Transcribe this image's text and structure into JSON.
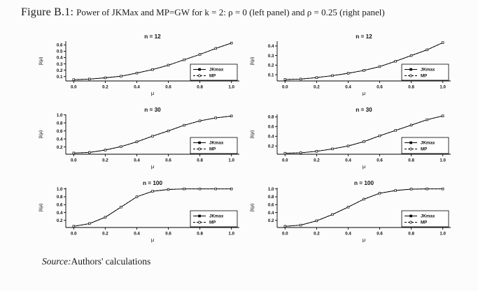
{
  "figure": {
    "label": "Figure B.1:",
    "caption": "Power of JKMax and MP=GW for k = 2: ρ = 0 (left panel) and ρ = 0.25 (right panel)"
  },
  "source": {
    "label": "Source:",
    "text": "Authors' calculations"
  },
  "colors": {
    "line": "#000000",
    "background": "#fcfcfc",
    "text": "#1a1a1a"
  },
  "chart_data": [
    {
      "type": "line",
      "title": "n = 12",
      "panel": "rho = 0 (left panel)",
      "xlabel": "μ",
      "ylabel": "β(μ)",
      "x": [
        0.0,
        0.1,
        0.2,
        0.3,
        0.4,
        0.5,
        0.6,
        0.7,
        0.8,
        0.9,
        1.0
      ],
      "series": [
        {
          "name": "JKmax",
          "line": "solid",
          "marker": "filled-square",
          "values": [
            0.05,
            0.06,
            0.08,
            0.105,
            0.155,
            0.21,
            0.28,
            0.365,
            0.45,
            0.545,
            0.63
          ]
        },
        {
          "name": "MP",
          "line": "dashed",
          "marker": "open-circle",
          "values": [
            0.05,
            0.06,
            0.08,
            0.105,
            0.155,
            0.21,
            0.28,
            0.365,
            0.45,
            0.545,
            0.63
          ]
        }
      ],
      "xticks": [
        0.0,
        0.2,
        0.4,
        0.6,
        0.8,
        1.0
      ],
      "yticks": [
        0.1,
        0.2,
        0.3,
        0.4,
        0.5,
        0.6
      ],
      "ylim": [
        0.03,
        0.66
      ],
      "legend_position": "lower-right",
      "grid": false
    },
    {
      "type": "line",
      "title": "n = 12",
      "panel": "rho = 0.25 (right panel)",
      "xlabel": "μ",
      "ylabel": "β(μ)",
      "x": [
        0.0,
        0.1,
        0.2,
        0.3,
        0.4,
        0.5,
        0.6,
        0.7,
        0.8,
        0.9,
        1.0
      ],
      "series": [
        {
          "name": "JKmax",
          "line": "solid",
          "marker": "filled-square",
          "values": [
            0.05,
            0.055,
            0.07,
            0.09,
            0.115,
            0.145,
            0.185,
            0.24,
            0.3,
            0.36,
            0.435
          ]
        },
        {
          "name": "MP",
          "line": "dashed",
          "marker": "open-circle",
          "values": [
            0.05,
            0.055,
            0.07,
            0.09,
            0.115,
            0.145,
            0.185,
            0.24,
            0.3,
            0.36,
            0.435
          ]
        }
      ],
      "xticks": [
        0.0,
        0.2,
        0.4,
        0.6,
        0.8,
        1.0
      ],
      "yticks": [
        0.1,
        0.2,
        0.3,
        0.4
      ],
      "ylim": [
        0.035,
        0.45
      ],
      "legend_position": "lower-right",
      "grid": false
    },
    {
      "type": "line",
      "title": "n = 30",
      "panel": "rho = 0 (left panel)",
      "xlabel": "μ",
      "ylabel": "β(μ)",
      "x": [
        0.0,
        0.1,
        0.2,
        0.3,
        0.4,
        0.5,
        0.6,
        0.7,
        0.8,
        0.9,
        1.0
      ],
      "series": [
        {
          "name": "JKmax",
          "line": "solid",
          "marker": "filled-square",
          "values": [
            0.05,
            0.065,
            0.125,
            0.21,
            0.33,
            0.47,
            0.6,
            0.74,
            0.85,
            0.925,
            0.97
          ]
        },
        {
          "name": "MP",
          "line": "dashed",
          "marker": "open-circle",
          "values": [
            0.05,
            0.065,
            0.125,
            0.21,
            0.33,
            0.47,
            0.6,
            0.74,
            0.85,
            0.925,
            0.97
          ]
        }
      ],
      "xticks": [
        0.0,
        0.2,
        0.4,
        0.6,
        0.8,
        1.0
      ],
      "yticks": [
        0.2,
        0.4,
        0.6,
        0.8,
        1.0
      ],
      "ylim": [
        0.02,
        1.01
      ],
      "legend_position": "lower-right",
      "grid": false
    },
    {
      "type": "line",
      "title": "n = 30",
      "panel": "rho = 0.25 (right panel)",
      "xlabel": "μ",
      "ylabel": "β(μ)",
      "x": [
        0.0,
        0.1,
        0.2,
        0.3,
        0.4,
        0.5,
        0.6,
        0.7,
        0.8,
        0.9,
        1.0
      ],
      "series": [
        {
          "name": "JKmax",
          "line": "solid",
          "marker": "filled-square",
          "values": [
            0.05,
            0.06,
            0.09,
            0.14,
            0.2,
            0.29,
            0.41,
            0.52,
            0.63,
            0.74,
            0.82
          ]
        },
        {
          "name": "MP",
          "line": "dashed",
          "marker": "open-circle",
          "values": [
            0.05,
            0.06,
            0.09,
            0.14,
            0.2,
            0.29,
            0.41,
            0.52,
            0.63,
            0.74,
            0.82
          ]
        }
      ],
      "xticks": [
        0.0,
        0.2,
        0.4,
        0.6,
        0.8,
        1.0
      ],
      "yticks": [
        0.2,
        0.4,
        0.6,
        0.8
      ],
      "ylim": [
        0.03,
        0.85
      ],
      "legend_position": "lower-right",
      "grid": false
    },
    {
      "type": "line",
      "title": "n = 100",
      "panel": "rho = 0 (left panel)",
      "xlabel": "μ",
      "ylabel": "β(μ)",
      "x": [
        0.0,
        0.1,
        0.2,
        0.3,
        0.4,
        0.5,
        0.6,
        0.7,
        0.8,
        0.9,
        1.0
      ],
      "series": [
        {
          "name": "JKmax",
          "line": "solid",
          "marker": "filled-square",
          "values": [
            0.05,
            0.12,
            0.28,
            0.54,
            0.8,
            0.94,
            0.985,
            1.0,
            1.0,
            1.0,
            1.0
          ]
        },
        {
          "name": "MP",
          "line": "dashed",
          "marker": "open-circle",
          "values": [
            0.05,
            0.12,
            0.28,
            0.54,
            0.8,
            0.94,
            0.985,
            1.0,
            1.0,
            1.0,
            1.0
          ]
        }
      ],
      "xticks": [
        0.0,
        0.2,
        0.4,
        0.6,
        0.8,
        1.0
      ],
      "yticks": [
        0.2,
        0.4,
        0.6,
        0.8,
        1.0
      ],
      "ylim": [
        0.02,
        1.03
      ],
      "legend_position": "lower-right",
      "grid": false
    },
    {
      "type": "line",
      "title": "n = 100",
      "panel": "rho = 0.25 (right panel)",
      "xlabel": "μ",
      "ylabel": "β(μ)",
      "x": [
        0.0,
        0.1,
        0.2,
        0.3,
        0.4,
        0.5,
        0.6,
        0.7,
        0.8,
        0.9,
        1.0
      ],
      "series": [
        {
          "name": "JKmax",
          "line": "solid",
          "marker": "filled-square",
          "values": [
            0.05,
            0.08,
            0.19,
            0.35,
            0.54,
            0.74,
            0.89,
            0.96,
            0.995,
            1.0,
            1.0
          ]
        },
        {
          "name": "MP",
          "line": "dashed",
          "marker": "open-circle",
          "values": [
            0.05,
            0.08,
            0.19,
            0.35,
            0.54,
            0.74,
            0.89,
            0.96,
            0.995,
            1.0,
            1.0
          ]
        }
      ],
      "xticks": [
        0.0,
        0.2,
        0.4,
        0.6,
        0.8,
        1.0
      ],
      "yticks": [
        0.2,
        0.4,
        0.6,
        0.8,
        1.0
      ],
      "ylim": [
        0.02,
        1.03
      ],
      "legend_position": "lower-right",
      "grid": false
    }
  ]
}
